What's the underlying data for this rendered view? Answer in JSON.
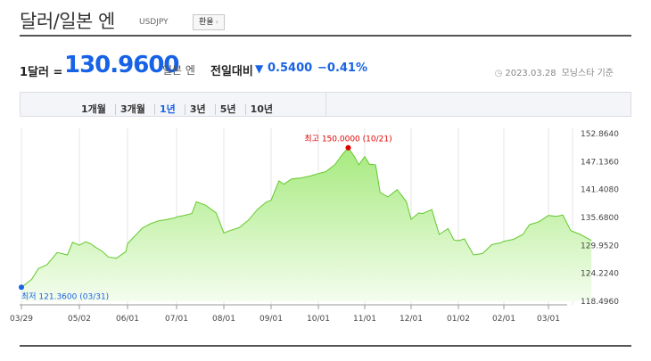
{
  "header": {
    "title": "달러/일본 엔",
    "ticker": "USDJPY",
    "exchange_button": "환율",
    "exchange_button_arrow": "›"
  },
  "rate": {
    "prefix": "1달러 =",
    "value": "130.9600",
    "unit": "일본 엔",
    "change_label": "전일대비",
    "change_arrow": "▼",
    "change_value": "0.5400",
    "change_percent": "−0.41%",
    "as_of_date": "2023.03.28",
    "as_of_note": "모닝스타 기준"
  },
  "tabs": [
    {
      "label": "1개월",
      "active": false
    },
    {
      "label": "3개월",
      "active": false
    },
    {
      "label": "1년",
      "active": true
    },
    {
      "label": "3년",
      "active": false
    },
    {
      "label": "5년",
      "active": false
    },
    {
      "label": "10년",
      "active": false
    }
  ],
  "colors": {
    "accent_blue": "#1762e6",
    "line_green": "#63c92c",
    "fill_green_top": "#a6ea7e",
    "fill_green_bottom": "#f4fdee",
    "max_red": "#e00000",
    "min_blue": "#1762e6"
  },
  "chart_data": {
    "type": "area",
    "title": "",
    "xlabel": "",
    "ylabel": "",
    "x_ticks": [
      "03/29",
      "05/02",
      "06/01",
      "07/01",
      "08/01",
      "09/01",
      "10/01",
      "11/01",
      "12/01",
      "01/02",
      "02/01",
      "03/01"
    ],
    "y_ticks": [
      "152.8640",
      "147.1360",
      "141.4080",
      "135.6800",
      "129.9520",
      "124.2240",
      "118.4960"
    ],
    "y_tick_values": [
      152.864,
      147.136,
      141.408,
      135.68,
      129.952,
      124.224,
      118.496
    ],
    "ylim": [
      118.496,
      152.864
    ],
    "grid": "vertical",
    "max_annotation": "최고 150.0000 (10/21)",
    "min_annotation": "최저 121.3600 (03/31)",
    "series": [
      {
        "dates": [
          "03/29",
          "04/04",
          "04/08",
          "04/13",
          "04/19",
          "04/25",
          "04/28",
          "05/02",
          "05/06",
          "05/09",
          "05/12",
          "05/16",
          "05/20",
          "05/25",
          "05/31",
          "06/01",
          "06/07",
          "06/10",
          "06/15",
          "06/20",
          "06/24",
          "06/30",
          "07/01",
          "07/06",
          "07/11",
          "07/14",
          "07/20",
          "07/27",
          "08/01",
          "08/05",
          "08/11",
          "08/17",
          "08/23",
          "08/29",
          "09/01",
          "09/06",
          "09/09",
          "09/14",
          "09/20",
          "09/26",
          "09/30",
          "10/06",
          "10/12",
          "10/17",
          "10/21",
          "10/25",
          "10/28",
          "11/01",
          "11/04",
          "11/08",
          "11/11",
          "11/16",
          "11/22",
          "11/28",
          "12/01",
          "12/06",
          "12/09",
          "12/15",
          "12/20",
          "12/26",
          "12/30",
          "01/02",
          "01/06",
          "01/12",
          "01/18",
          "01/24",
          "01/30",
          "02/01",
          "02/07",
          "02/13",
          "02/17",
          "02/23",
          "03/01",
          "03/06",
          "03/10",
          "03/15",
          "03/21",
          "03/28"
        ],
        "values": [
          121.36,
          123.0,
          125.2,
          126.0,
          128.5,
          128.0,
          130.6,
          130.0,
          130.7,
          130.3,
          129.6,
          128.8,
          127.6,
          127.3,
          128.7,
          130.3,
          132.4,
          133.5,
          134.4,
          135.0,
          135.2,
          135.6,
          135.8,
          136.1,
          136.5,
          138.9,
          138.2,
          136.6,
          132.5,
          133.0,
          133.6,
          135.1,
          137.3,
          138.9,
          139.2,
          143.2,
          142.5,
          143.6,
          143.8,
          144.2,
          144.6,
          145.1,
          146.5,
          148.6,
          150.0,
          148.2,
          146.5,
          148.2,
          146.6,
          146.5,
          140.8,
          139.9,
          141.4,
          138.9,
          135.3,
          136.6,
          136.5,
          137.3,
          132.2,
          133.4,
          131.1,
          130.9,
          131.3,
          128.0,
          128.3,
          130.1,
          130.5,
          130.8,
          131.2,
          132.2,
          134.2,
          134.8,
          136.1,
          135.9,
          136.2,
          133.0,
          132.2,
          130.96
        ]
      }
    ]
  }
}
